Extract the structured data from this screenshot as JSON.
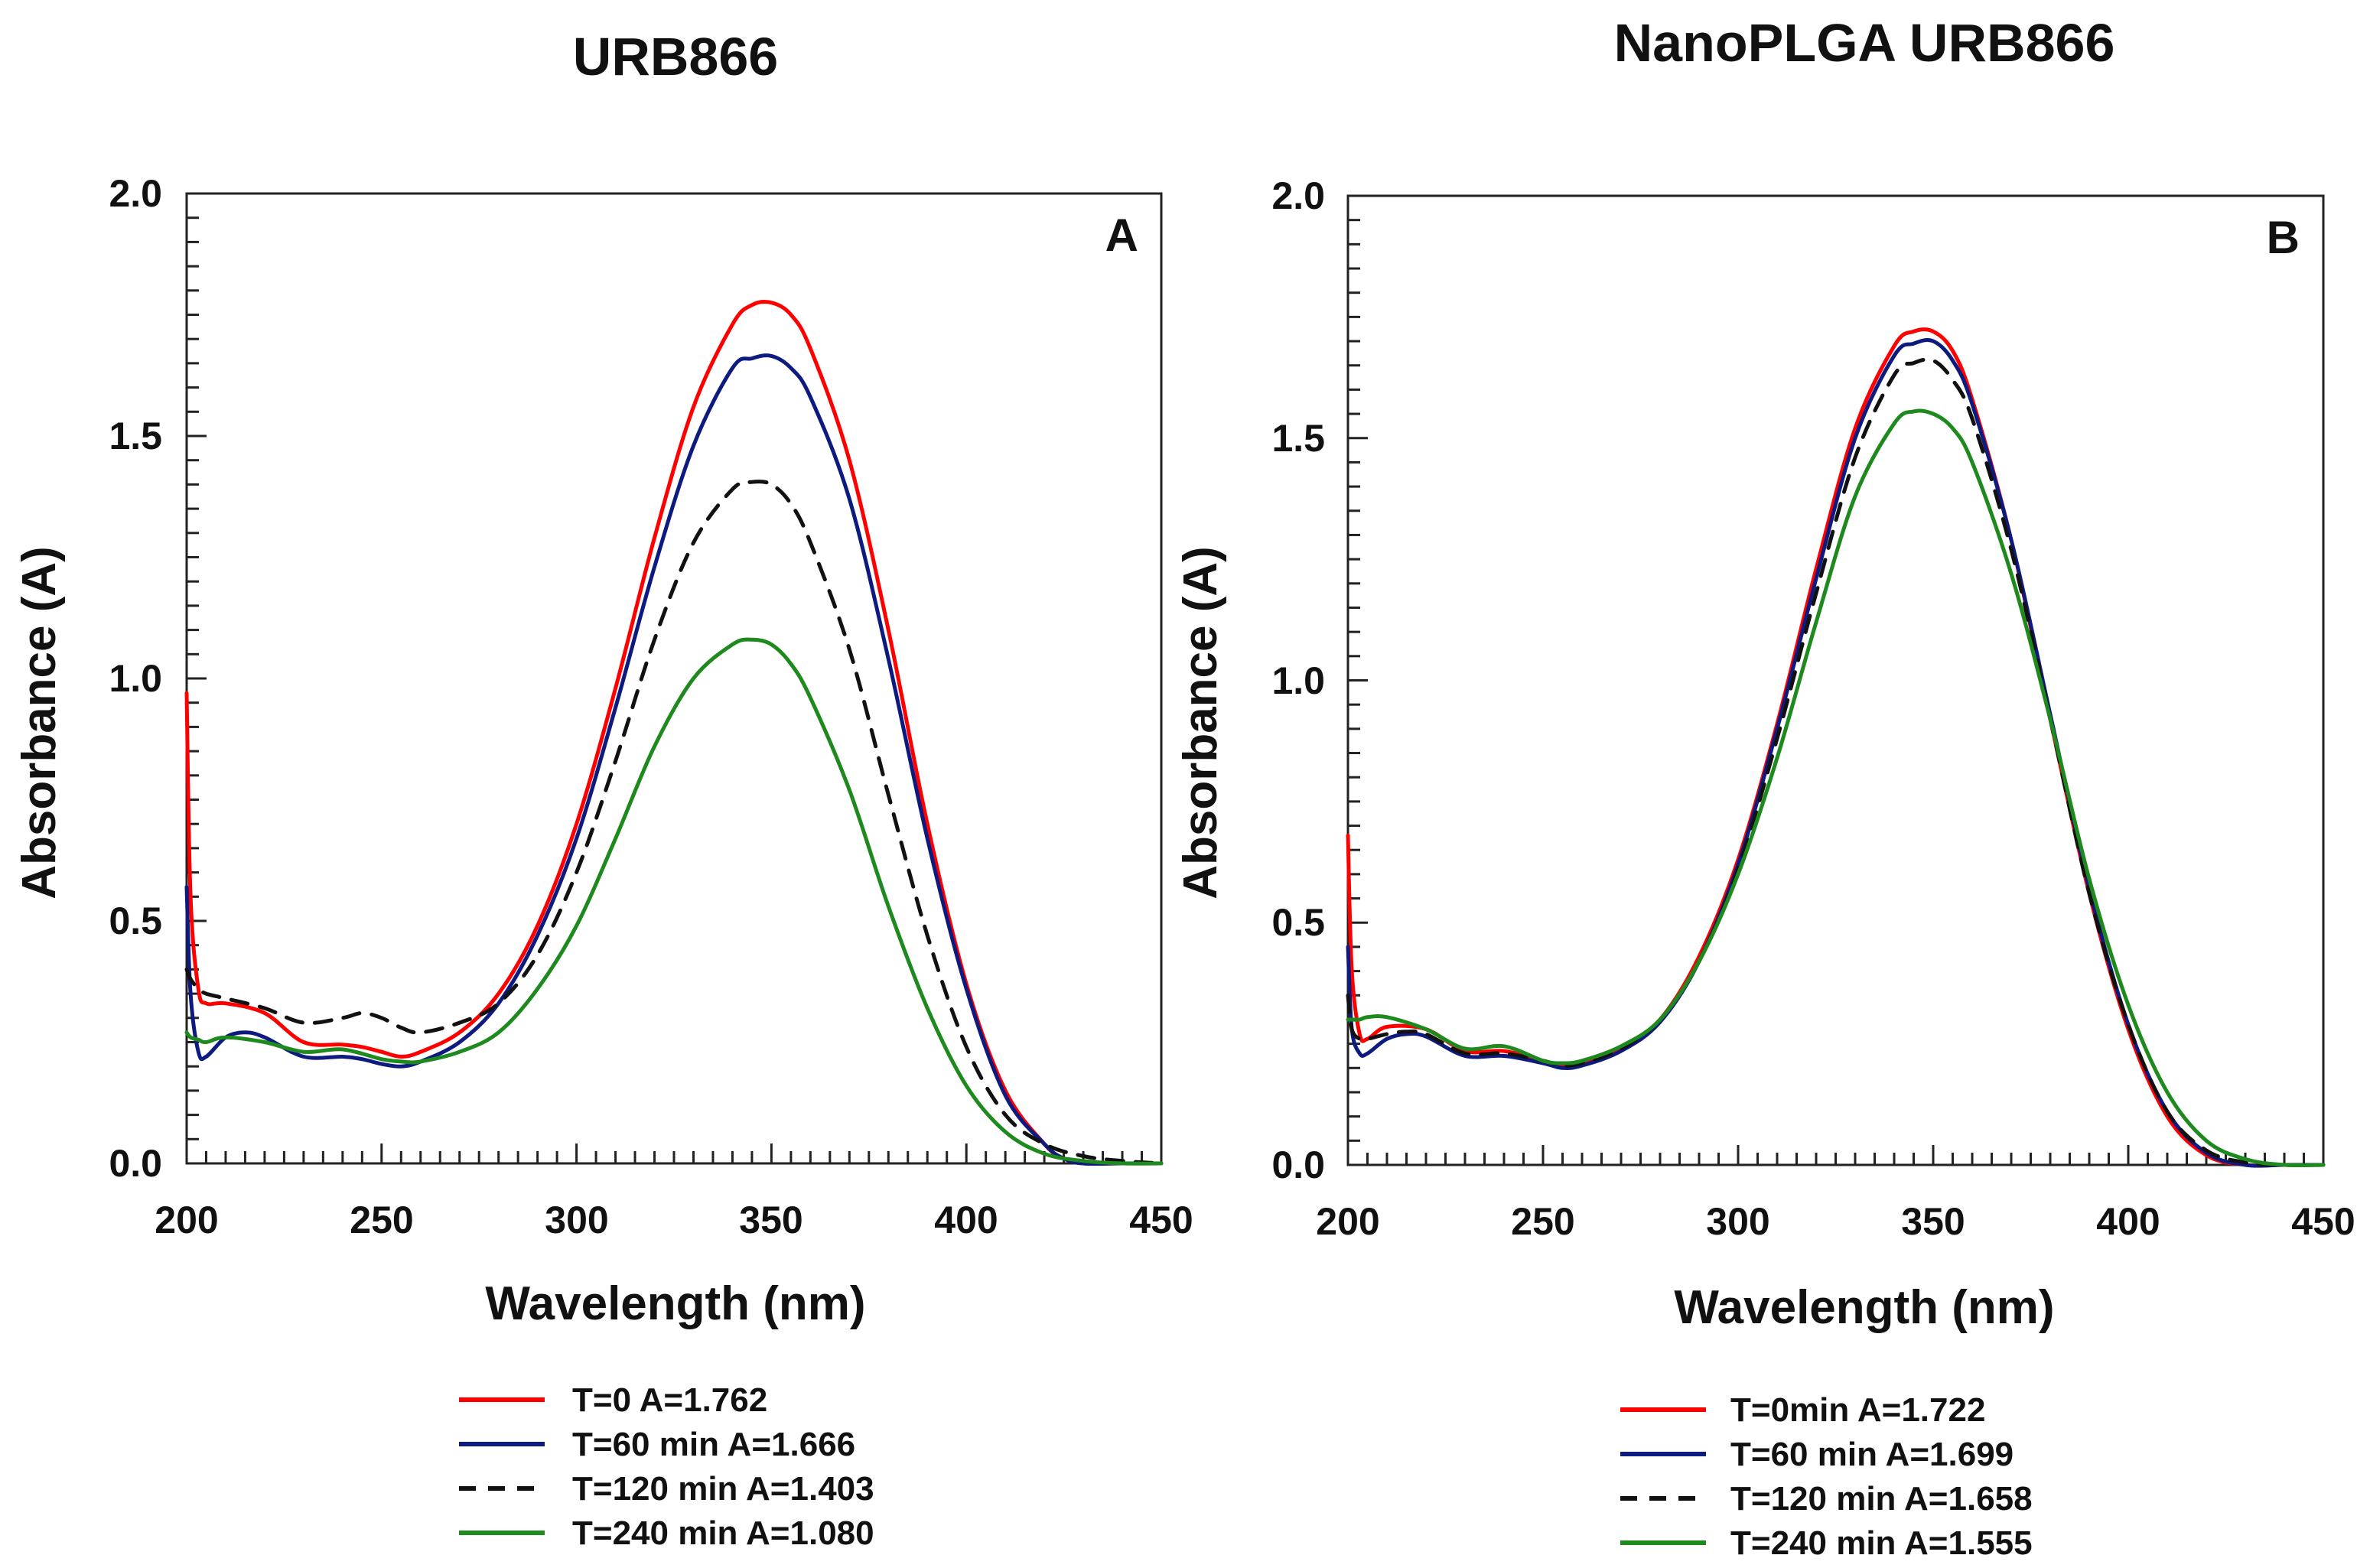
{
  "chart_data": [
    {
      "type": "line",
      "title": "URB866",
      "panel_label": "A",
      "xlabel": "Wavelength (nm)",
      "ylabel": "Absorbance (A)",
      "xlim": [
        200,
        450
      ],
      "ylim": [
        0,
        2.0
      ],
      "xticks": [
        "200",
        "250",
        "300",
        "350",
        "400",
        "450"
      ],
      "yticks": [
        "0.0",
        "0.5",
        "1.0",
        "1.5",
        "2.0"
      ],
      "series": [
        {
          "name": "T=0 A=1.762",
          "color": "#ff0000",
          "dash": "solid",
          "x": [
            200,
            201,
            203,
            205,
            210,
            220,
            230,
            240,
            245,
            250,
            255,
            260,
            270,
            280,
            290,
            300,
            310,
            320,
            330,
            340,
            345,
            350,
            355,
            360,
            370,
            380,
            390,
            400,
            410,
            420,
            425,
            430,
            440,
            450
          ],
          "y": [
            0.97,
            0.55,
            0.36,
            0.33,
            0.33,
            0.31,
            0.25,
            0.245,
            0.24,
            0.23,
            0.22,
            0.23,
            0.27,
            0.35,
            0.49,
            0.7,
            0.98,
            1.29,
            1.56,
            1.73,
            1.77,
            1.775,
            1.75,
            1.68,
            1.45,
            1.1,
            0.7,
            0.37,
            0.15,
            0.04,
            0.01,
            0.0,
            0.0,
            0.0
          ]
        },
        {
          "name": "T=60 min A=1.666",
          "color": "#0d1a80",
          "dash": "solid",
          "x": [
            200,
            201,
            203,
            205,
            210,
            215,
            220,
            230,
            240,
            245,
            250,
            255,
            260,
            270,
            280,
            290,
            300,
            310,
            320,
            330,
            340,
            345,
            350,
            355,
            360,
            370,
            380,
            390,
            400,
            410,
            420,
            425,
            430,
            440,
            450
          ],
          "y": [
            0.57,
            0.35,
            0.23,
            0.22,
            0.26,
            0.27,
            0.26,
            0.22,
            0.22,
            0.215,
            0.205,
            0.2,
            0.21,
            0.25,
            0.33,
            0.47,
            0.67,
            0.94,
            1.23,
            1.48,
            1.64,
            1.66,
            1.665,
            1.64,
            1.58,
            1.37,
            1.04,
            0.67,
            0.36,
            0.14,
            0.04,
            0.01,
            0.0,
            0.0,
            0.0
          ]
        },
        {
          "name": "T=120 min A=1.403",
          "color": "#111111",
          "dash": "dashed",
          "x": [
            200,
            201,
            203,
            205,
            210,
            220,
            230,
            240,
            245,
            250,
            255,
            260,
            270,
            280,
            290,
            300,
            310,
            320,
            330,
            340,
            345,
            350,
            355,
            360,
            370,
            380,
            390,
            400,
            410,
            420,
            430,
            440,
            450
          ],
          "y": [
            0.4,
            0.38,
            0.36,
            0.35,
            0.34,
            0.32,
            0.29,
            0.3,
            0.31,
            0.3,
            0.28,
            0.27,
            0.29,
            0.33,
            0.43,
            0.6,
            0.83,
            1.08,
            1.28,
            1.39,
            1.405,
            1.4,
            1.36,
            1.28,
            1.06,
            0.76,
            0.47,
            0.24,
            0.1,
            0.04,
            0.015,
            0.005,
            0.0
          ]
        },
        {
          "name": "T=240 min A=1.080",
          "color": "#1e8a1e",
          "dash": "solid",
          "x": [
            200,
            201,
            203,
            205,
            210,
            220,
            230,
            240,
            250,
            255,
            260,
            270,
            280,
            290,
            300,
            310,
            320,
            330,
            340,
            345,
            350,
            355,
            360,
            370,
            380,
            390,
            400,
            410,
            420,
            430,
            440,
            450
          ],
          "y": [
            0.27,
            0.26,
            0.255,
            0.25,
            0.26,
            0.25,
            0.23,
            0.235,
            0.215,
            0.21,
            0.21,
            0.23,
            0.27,
            0.36,
            0.49,
            0.67,
            0.86,
            1.0,
            1.07,
            1.08,
            1.07,
            1.03,
            0.96,
            0.77,
            0.53,
            0.32,
            0.16,
            0.065,
            0.02,
            0.005,
            0.0,
            0.0
          ]
        }
      ]
    },
    {
      "type": "line",
      "title": "NanoPLGA URB866",
      "panel_label": "B",
      "xlabel": "Wavelength (nm)",
      "ylabel": "Absorbance (A)",
      "xlim": [
        200,
        450
      ],
      "ylim": [
        0,
        2.0
      ],
      "xticks": [
        "200",
        "250",
        "300",
        "350",
        "400",
        "450"
      ],
      "yticks": [
        "0.0",
        "0.5",
        "1.0",
        "1.5",
        "2.0"
      ],
      "series": [
        {
          "name": "T=0min A=1.722",
          "color": "#ff0000",
          "dash": "solid",
          "x": [
            200,
            201,
            203,
            205,
            210,
            220,
            230,
            240,
            250,
            255,
            260,
            270,
            280,
            290,
            300,
            310,
            320,
            330,
            340,
            345,
            350,
            355,
            360,
            370,
            380,
            390,
            400,
            410,
            420,
            430,
            440,
            450
          ],
          "y": [
            0.68,
            0.4,
            0.27,
            0.26,
            0.285,
            0.28,
            0.235,
            0.235,
            0.215,
            0.205,
            0.21,
            0.24,
            0.3,
            0.43,
            0.63,
            0.91,
            1.23,
            1.52,
            1.69,
            1.72,
            1.72,
            1.68,
            1.58,
            1.29,
            0.92,
            0.56,
            0.28,
            0.1,
            0.02,
            0.0,
            0.0,
            0.0
          ]
        },
        {
          "name": "T=60 min A=1.699",
          "color": "#0d1a80",
          "dash": "solid",
          "x": [
            200,
            201,
            203,
            205,
            210,
            215,
            220,
            230,
            240,
            250,
            255,
            260,
            270,
            280,
            290,
            300,
            310,
            320,
            330,
            340,
            345,
            350,
            355,
            360,
            370,
            380,
            390,
            400,
            410,
            420,
            430,
            440,
            450
          ],
          "y": [
            0.45,
            0.28,
            0.23,
            0.23,
            0.26,
            0.27,
            0.265,
            0.225,
            0.225,
            0.21,
            0.2,
            0.205,
            0.235,
            0.295,
            0.42,
            0.62,
            0.9,
            1.21,
            1.5,
            1.67,
            1.695,
            1.7,
            1.66,
            1.57,
            1.29,
            0.93,
            0.57,
            0.29,
            0.11,
            0.025,
            0.0,
            0.0,
            0.0
          ]
        },
        {
          "name": "T=120 min A=1.658",
          "color": "#111111",
          "dash": "dashed",
          "x": [
            200,
            201,
            203,
            205,
            210,
            215,
            220,
            230,
            240,
            250,
            255,
            260,
            270,
            280,
            290,
            300,
            310,
            320,
            330,
            340,
            345,
            350,
            355,
            360,
            370,
            380,
            390,
            400,
            410,
            420,
            430,
            440,
            450
          ],
          "y": [
            0.35,
            0.28,
            0.26,
            0.26,
            0.27,
            0.275,
            0.27,
            0.23,
            0.23,
            0.215,
            0.205,
            0.21,
            0.24,
            0.3,
            0.42,
            0.61,
            0.88,
            1.18,
            1.46,
            1.63,
            1.655,
            1.66,
            1.62,
            1.54,
            1.27,
            0.92,
            0.56,
            0.29,
            0.11,
            0.03,
            0.005,
            0.0,
            0.0
          ]
        },
        {
          "name": "T=240 min A=1.555",
          "color": "#1e8a1e",
          "dash": "solid",
          "x": [
            200,
            201,
            203,
            205,
            210,
            220,
            230,
            240,
            250,
            255,
            260,
            270,
            280,
            290,
            300,
            310,
            320,
            330,
            340,
            345,
            350,
            355,
            360,
            370,
            380,
            390,
            400,
            410,
            420,
            430,
            440,
            450
          ],
          "y": [
            0.3,
            0.3,
            0.3,
            0.305,
            0.305,
            0.28,
            0.24,
            0.245,
            0.215,
            0.21,
            0.215,
            0.245,
            0.3,
            0.42,
            0.6,
            0.84,
            1.12,
            1.38,
            1.53,
            1.555,
            1.55,
            1.52,
            1.45,
            1.22,
            0.92,
            0.59,
            0.33,
            0.15,
            0.05,
            0.012,
            0.0,
            0.0
          ]
        }
      ]
    }
  ]
}
